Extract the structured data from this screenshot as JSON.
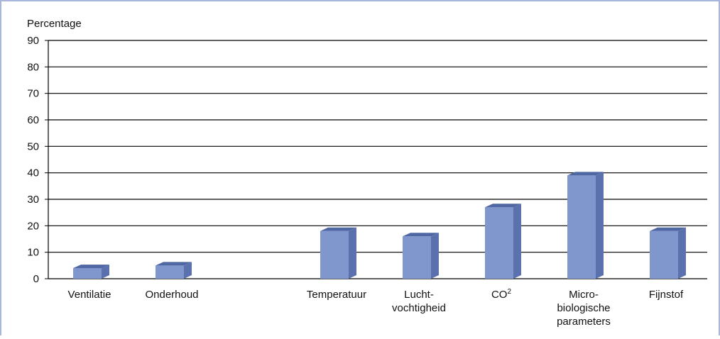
{
  "chart_data": {
    "type": "bar",
    "ylabel": "Percentage",
    "ylim": [
      0,
      90
    ],
    "yticks": [
      0,
      10,
      20,
      30,
      40,
      50,
      60,
      70,
      80,
      90
    ],
    "grid": true,
    "categories": [
      "Ventilatie",
      "Onderhoud",
      "",
      "Temperatuur",
      "Lucht-\nvochtigheid",
      "CO2",
      "Micro-\nbiologische\nparameters",
      "Fijnstof"
    ],
    "values": [
      4,
      5,
      null,
      18,
      16,
      27,
      39,
      18
    ],
    "colors": {
      "bar_front": "#7f97cd",
      "bar_side": "#5a71ad",
      "bar_top": "#4f67a3",
      "grid": "#000000",
      "frame": "#a9b6dc"
    }
  }
}
